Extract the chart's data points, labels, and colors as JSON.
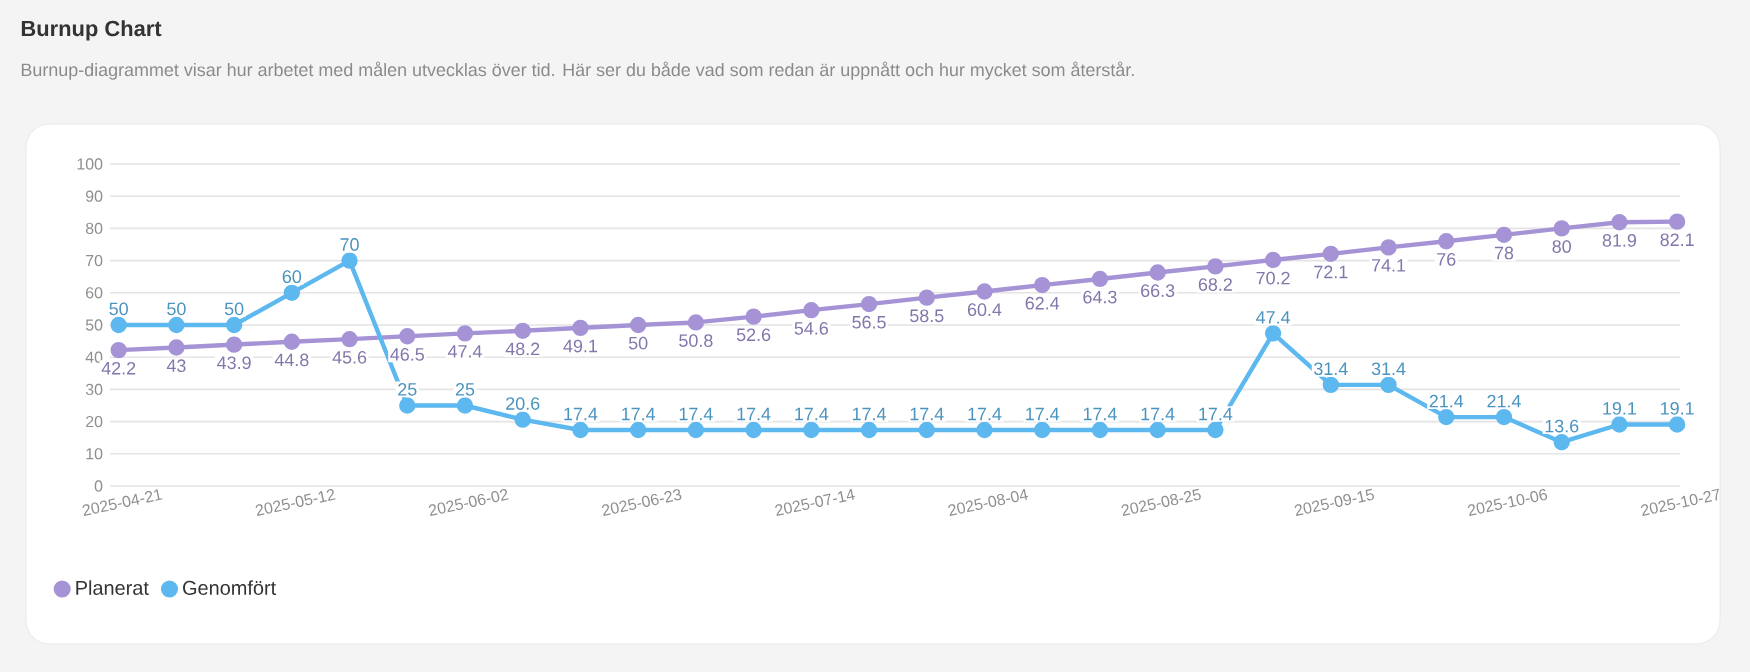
{
  "chart_data": {
    "type": "line",
    "title": "Burnup Chart",
    "subtitle": "Burnup-diagrammet visar hur arbetet med målen utvecklas över tid. Här ser du både vad som redan är uppnått och hur mycket som återstår.",
    "categories": [
      "2025-04-21",
      null,
      null,
      "2025-05-12",
      null,
      null,
      "2025-06-02",
      null,
      null,
      "2025-06-23",
      null,
      null,
      "2025-07-14",
      null,
      null,
      "2025-08-04",
      null,
      null,
      "2025-08-25",
      null,
      null,
      "2025-09-15",
      null,
      null,
      "2025-10-06",
      null,
      null,
      "2025-10-27"
    ],
    "series": [
      {
        "name": "Planerat",
        "color": "#a593d6",
        "values": [
          42.2,
          43,
          43.9,
          44.8,
          45.6,
          46.5,
          47.4,
          48.2,
          49.1,
          50,
          50.8,
          52.6,
          54.6,
          56.5,
          58.5,
          60.4,
          62.4,
          64.3,
          66.3,
          68.2,
          70.2,
          72.1,
          74.1,
          76,
          78,
          80,
          81.9,
          82.1
        ]
      },
      {
        "name": "Genomfört",
        "color": "#5cb8ee",
        "values": [
          50,
          50,
          50,
          60,
          70,
          25,
          25,
          20.6,
          17.4,
          17.4,
          17.4,
          17.4,
          17.4,
          17.4,
          17.4,
          17.4,
          17.4,
          17.4,
          17.4,
          17.4,
          47.4,
          31.4,
          31.4,
          21.4,
          21.4,
          13.6,
          19.1,
          19.1
        ]
      }
    ],
    "ylim": [
      0,
      100
    ],
    "yticks": [
      0,
      10,
      20,
      30,
      40,
      50,
      60,
      70,
      80,
      90,
      100
    ],
    "grid": "y",
    "legend": "bottom left",
    "marker": "circle",
    "line_style": "solid",
    "data_labels": true
  }
}
